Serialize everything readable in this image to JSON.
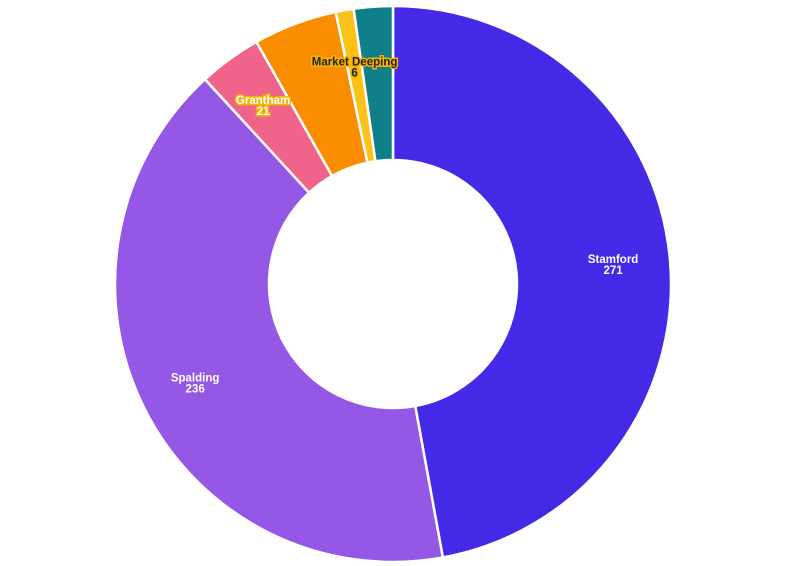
{
  "chart_data": {
    "type": "pie",
    "donut": true,
    "categories": [
      "Stamford",
      "Spalding",
      "Grantham",
      "",
      "Market Deeping",
      ""
    ],
    "values": [
      271,
      236,
      21,
      28,
      6,
      13
    ],
    "labels": [
      {
        "name": "Stamford",
        "value": "271"
      },
      {
        "name": "Spalding",
        "value": "236"
      },
      {
        "name": "Grantham",
        "value": "21"
      },
      {
        "name": "",
        "value": ""
      },
      {
        "name": "Market Deeping",
        "value": "6"
      },
      {
        "name": "",
        "value": ""
      }
    ],
    "colors": [
      "#4429e6",
      "#9457e6",
      "#f0648a",
      "#fa8c00",
      "#fbc218",
      "#0f7f8a"
    ],
    "label_colors": [
      "#ffffff",
      "#ffffff",
      "#ffffff",
      "#ffffff",
      "#222222",
      "#ffffff"
    ],
    "title": "",
    "legend": "none"
  }
}
